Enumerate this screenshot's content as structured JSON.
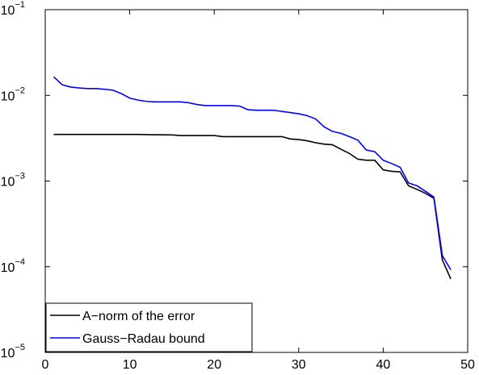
{
  "chart_data": {
    "type": "line",
    "x": [
      1,
      2,
      3,
      4,
      5,
      6,
      7,
      8,
      9,
      10,
      11,
      12,
      13,
      14,
      15,
      16,
      17,
      18,
      19,
      20,
      21,
      22,
      23,
      24,
      25,
      26,
      27,
      28,
      29,
      30,
      31,
      32,
      33,
      34,
      35,
      36,
      37,
      38,
      39,
      40,
      41,
      42,
      43,
      44,
      45,
      46,
      47,
      48
    ],
    "series": [
      {
        "name": "A−norm of the error",
        "color": "#000000",
        "values": [
          0.0035,
          0.0035,
          0.0035,
          0.0035,
          0.0035,
          0.0035,
          0.0035,
          0.0035,
          0.0035,
          0.0035,
          0.0035,
          0.00348,
          0.00347,
          0.00346,
          0.00345,
          0.0034,
          0.0034,
          0.0034,
          0.0034,
          0.0034,
          0.0033,
          0.0033,
          0.0033,
          0.0033,
          0.0033,
          0.0033,
          0.0033,
          0.0033,
          0.0031,
          0.00305,
          0.00295,
          0.0028,
          0.0027,
          0.00265,
          0.00235,
          0.0021,
          0.0018,
          0.00175,
          0.00175,
          0.00135,
          0.0013,
          0.00128,
          0.00088,
          0.0008,
          0.00072,
          0.00063,
          0.00012,
          7.2e-05
        ]
      },
      {
        "name": "Gauss−Radau bound",
        "color": "#0000ff",
        "values": [
          0.0165,
          0.0133,
          0.0125,
          0.0122,
          0.012,
          0.012,
          0.0118,
          0.0115,
          0.0105,
          0.0093,
          0.0088,
          0.0085,
          0.0084,
          0.0084,
          0.0084,
          0.0084,
          0.0082,
          0.0078,
          0.0076,
          0.0076,
          0.0076,
          0.0076,
          0.0075,
          0.0068,
          0.0067,
          0.0067,
          0.0067,
          0.0065,
          0.0063,
          0.0061,
          0.0058,
          0.0053,
          0.0043,
          0.0038,
          0.0036,
          0.0033,
          0.003,
          0.0023,
          0.0022,
          0.00175,
          0.0016,
          0.00145,
          0.00095,
          0.00088,
          0.00076,
          0.00065,
          0.000135,
          9.2e-05
        ]
      }
    ],
    "xlim": [
      0,
      50
    ],
    "xticks": [
      0,
      10,
      20,
      30,
      40,
      50
    ],
    "ylim": [
      1e-05,
      0.1
    ],
    "yticks": [
      {
        "value": 1e-05,
        "label": "10",
        "exponent": "−5"
      },
      {
        "value": 0.0001,
        "label": "10",
        "exponent": "−4"
      },
      {
        "value": 0.001,
        "label": "10",
        "exponent": "−3"
      },
      {
        "value": 0.01,
        "label": "10",
        "exponent": "−2"
      },
      {
        "value": 0.1,
        "label": "10",
        "exponent": "−1"
      }
    ],
    "yscale": "log",
    "grid": false,
    "legend": "lower left"
  }
}
